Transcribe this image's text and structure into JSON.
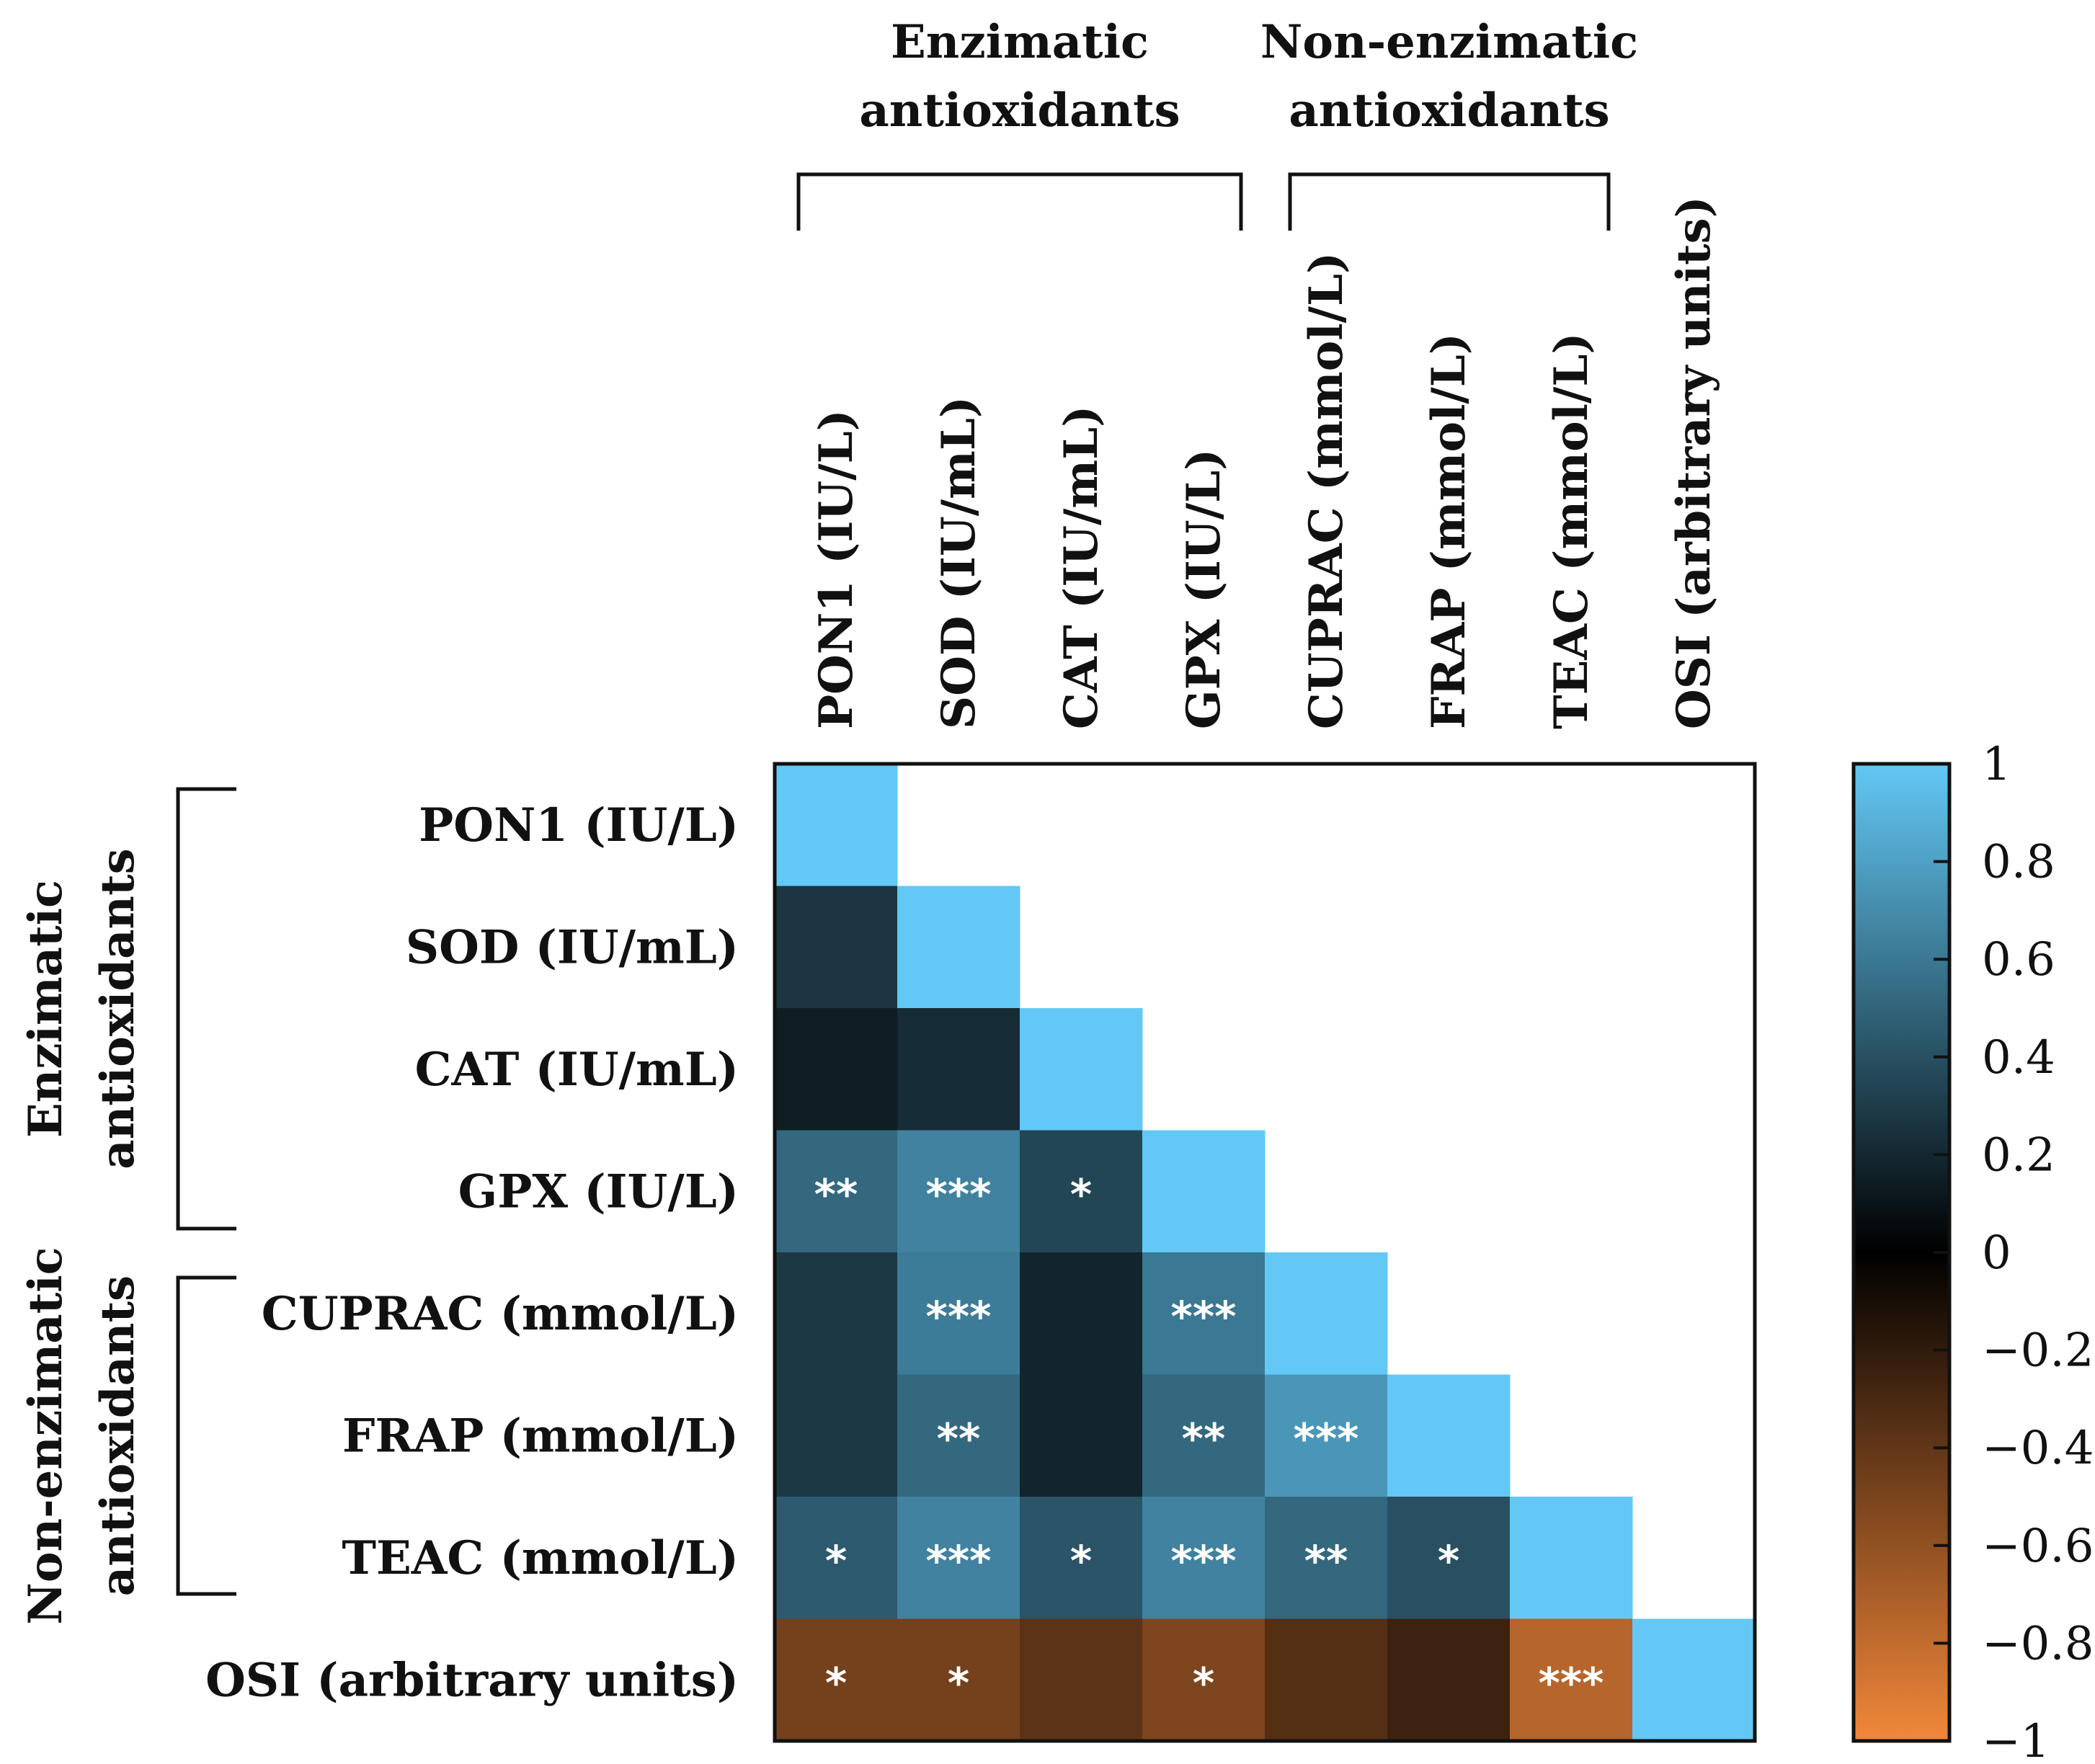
{
  "chart_data": {
    "type": "heatmap",
    "title": "",
    "variables": [
      "PON1 (IU/L)",
      "SOD (IU/mL)",
      "CAT (IU/mL)",
      "GPX (IU/L)",
      "CUPRAC (mmol/L)",
      "FRAP (mmol/L)",
      "TEAC (mmol/L)",
      "OSI (arbitrary units)"
    ],
    "groups": [
      {
        "label_line1": "Enzimatic",
        "label_line2": "antioxidants",
        "members": [
          "PON1 (IU/L)",
          "SOD (IU/mL)",
          "CAT (IU/mL)",
          "GPX (IU/L)"
        ]
      },
      {
        "label_line1": "Non-enzimatic",
        "label_line2": "antioxidants",
        "members": [
          "CUPRAC (mmol/L)",
          "FRAP (mmol/L)",
          "TEAC (mmol/L)"
        ]
      }
    ],
    "matrix": [
      [
        1.0,
        null,
        null,
        null,
        null,
        null,
        null,
        null
      ],
      [
        0.27,
        1.0,
        null,
        null,
        null,
        null,
        null,
        null
      ],
      [
        0.15,
        0.22,
        1.0,
        null,
        null,
        null,
        null,
        null
      ],
      [
        0.52,
        0.65,
        0.35,
        1.0,
        null,
        null,
        null,
        null
      ],
      [
        0.28,
        0.62,
        0.18,
        0.6,
        1.0,
        null,
        null,
        null
      ],
      [
        0.28,
        0.52,
        0.18,
        0.52,
        0.75,
        1.0,
        null,
        null
      ],
      [
        0.45,
        0.65,
        0.42,
        0.65,
        0.52,
        0.4,
        1.0,
        null
      ],
      [
        -0.48,
        -0.48,
        -0.38,
        -0.52,
        -0.35,
        -0.25,
        -0.75,
        1.0
      ]
    ],
    "significance": [
      [
        "",
        "",
        "",
        "",
        "",
        "",
        "",
        ""
      ],
      [
        "",
        "",
        "",
        "",
        "",
        "",
        "",
        ""
      ],
      [
        "",
        "",
        "",
        "",
        "",
        "",
        "",
        ""
      ],
      [
        "**",
        "***",
        "*",
        "",
        "",
        "",
        "",
        ""
      ],
      [
        "",
        "***",
        "",
        "***",
        "",
        "",
        "",
        ""
      ],
      [
        "",
        "**",
        "",
        "**",
        "***",
        "",
        "",
        ""
      ],
      [
        "*",
        "***",
        "*",
        "***",
        "**",
        "*",
        "",
        ""
      ],
      [
        "*",
        "*",
        "",
        "*",
        "",
        "",
        "***",
        ""
      ]
    ],
    "colorbar": {
      "range": [
        -1,
        1
      ],
      "ticks": [
        "1",
        "0.8",
        "0.6",
        "0.4",
        "0.2",
        "0",
        "−0.2",
        "−0.4",
        "−0.6",
        "−0.8",
        "−1"
      ],
      "tick_values": [
        1,
        0.8,
        0.6,
        0.4,
        0.2,
        0,
        -0.2,
        -0.4,
        -0.6,
        -0.8,
        -1
      ],
      "colors": {
        "positive": "#63C8F5",
        "zero": "#000000",
        "negative": "#F2873A"
      }
    }
  }
}
